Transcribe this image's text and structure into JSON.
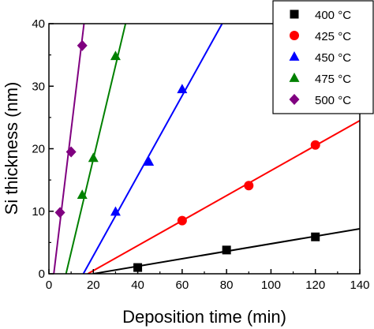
{
  "chart_data": {
    "type": "scatter",
    "xlabel": "Deposition time (min)",
    "ylabel": "Si thickness (nm)",
    "xlim": [
      0,
      140
    ],
    "ylim": [
      0,
      40
    ],
    "xticks": [
      0,
      20,
      40,
      60,
      80,
      100,
      120,
      140
    ],
    "yticks": [
      0,
      10,
      20,
      30,
      40
    ],
    "grid": false,
    "legend_position": "top-right",
    "series": [
      {
        "name": "400 °C",
        "color": "#000000",
        "marker": "square",
        "points": [
          {
            "x": 40,
            "y": 1.0
          },
          {
            "x": 80,
            "y": 3.8
          },
          {
            "x": 120,
            "y": 5.9
          }
        ],
        "fit": {
          "x": [
            20,
            140
          ],
          "y": [
            0,
            7.2
          ]
        }
      },
      {
        "name": "425 °C",
        "color": "#ff0000",
        "marker": "circle",
        "points": [
          {
            "x": 60,
            "y": 8.5
          },
          {
            "x": 90,
            "y": 14.1
          },
          {
            "x": 120,
            "y": 20.6
          }
        ],
        "fit": {
          "x": [
            17.5,
            140
          ],
          "y": [
            0,
            24.5
          ]
        }
      },
      {
        "name": "450 °C",
        "color": "#0000ff",
        "marker": "triangle",
        "points": [
          {
            "x": 30,
            "y": 9.9
          },
          {
            "x": 45,
            "y": 17.9
          },
          {
            "x": 60,
            "y": 29.5
          }
        ],
        "fit": {
          "x": [
            15.5,
            78
          ],
          "y": [
            0,
            40
          ]
        }
      },
      {
        "name": "475 °C",
        "color": "#008000",
        "marker": "triangle",
        "points": [
          {
            "x": 15,
            "y": 12.6
          },
          {
            "x": 20,
            "y": 18.5
          },
          {
            "x": 30,
            "y": 34.8
          }
        ],
        "fit": {
          "x": [
            7.7,
            34.5
          ],
          "y": [
            0,
            40
          ]
        }
      },
      {
        "name": "500 °C",
        "color": "#800080",
        "marker": "diamond",
        "points": [
          {
            "x": 5,
            "y": 9.8
          },
          {
            "x": 10,
            "y": 19.5
          },
          {
            "x": 15,
            "y": 36.5
          }
        ],
        "fit": {
          "x": [
            2.2,
            15.8
          ],
          "y": [
            0,
            40
          ]
        }
      }
    ]
  }
}
